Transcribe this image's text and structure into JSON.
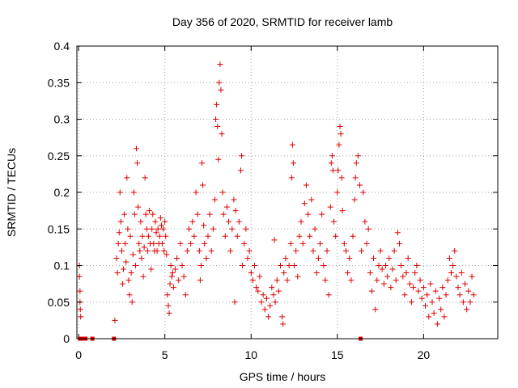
{
  "chart_data": {
    "type": "scatter",
    "title": "Day 356 of 2020, SRMTID for receiver lamb",
    "xlabel": "GPS time / hours",
    "ylabel": "SRMTID / TECUs",
    "xlim": [
      -0.1,
      24.3
    ],
    "ylim": [
      0,
      0.4
    ],
    "xticks": [
      0,
      5,
      10,
      15,
      20
    ],
    "xtick_labels": [
      "0",
      "5",
      "10",
      "15",
      "20"
    ],
    "yticks": [
      0,
      0.05,
      0.1,
      0.15,
      0.2,
      0.25,
      0.3,
      0.35,
      0.4
    ],
    "ytick_labels": [
      "0",
      "0.05",
      "0.1",
      "0.15",
      "0.2",
      "0.25",
      "0.3",
      "0.35",
      "0.4"
    ],
    "grid": true,
    "marker": "+",
    "color": "#e00000",
    "series": [
      {
        "name": "SRMTID",
        "points": [
          [
            0.05,
            0.1
          ],
          [
            0.05,
            0.085
          ],
          [
            0.08,
            0.065
          ],
          [
            0.08,
            0.05
          ],
          [
            0.1,
            0.04
          ],
          [
            0.12,
            0.03
          ],
          [
            2.1,
            0.025
          ],
          [
            2.2,
            0.11
          ],
          [
            2.25,
            0.09
          ],
          [
            2.3,
            0.13
          ],
          [
            2.35,
            0.145
          ],
          [
            2.4,
            0.2
          ],
          [
            2.45,
            0.16
          ],
          [
            2.5,
            0.12
          ],
          [
            2.55,
            0.075
          ],
          [
            2.6,
            0.095
          ],
          [
            2.65,
            0.17
          ],
          [
            2.7,
            0.13
          ],
          [
            2.75,
            0.105
          ],
          [
            2.8,
            0.22
          ],
          [
            2.85,
            0.15
          ],
          [
            2.9,
            0.08
          ],
          [
            2.95,
            0.06
          ],
          [
            3.0,
            0.14
          ],
          [
            3.05,
            0.09
          ],
          [
            3.1,
            0.05
          ],
          [
            3.15,
            0.115
          ],
          [
            3.2,
            0.2
          ],
          [
            3.25,
            0.17
          ],
          [
            3.3,
            0.1
          ],
          [
            3.35,
            0.26
          ],
          [
            3.4,
            0.24
          ],
          [
            3.45,
            0.18
          ],
          [
            3.5,
            0.13
          ],
          [
            3.55,
            0.12
          ],
          [
            3.6,
            0.16
          ],
          [
            3.65,
            0.11
          ],
          [
            3.7,
            0.14
          ],
          [
            3.75,
            0.085
          ],
          [
            3.8,
            0.125
          ],
          [
            3.85,
            0.22
          ],
          [
            3.9,
            0.17
          ],
          [
            3.95,
            0.15
          ],
          [
            4.0,
            0.12
          ],
          [
            4.05,
            0.14
          ],
          [
            4.1,
            0.175
          ],
          [
            4.15,
            0.13
          ],
          [
            4.2,
            0.095
          ],
          [
            4.25,
            0.15
          ],
          [
            4.3,
            0.17
          ],
          [
            4.35,
            0.13
          ],
          [
            4.4,
            0.12
          ],
          [
            4.45,
            0.16
          ],
          [
            4.5,
            0.145
          ],
          [
            4.55,
            0.12
          ],
          [
            4.6,
            0.15
          ],
          [
            4.65,
            0.13
          ],
          [
            4.7,
            0.14
          ],
          [
            4.75,
            0.165
          ],
          [
            4.8,
            0.155
          ],
          [
            4.85,
            0.13
          ],
          [
            4.9,
            0.15
          ],
          [
            4.95,
            0.12
          ],
          [
            5.0,
            0.16
          ],
          [
            5.05,
            0.14
          ],
          [
            5.1,
            0.115
          ],
          [
            5.15,
            0.06
          ],
          [
            5.2,
            0.045
          ],
          [
            5.25,
            0.035
          ],
          [
            5.3,
            0.075
          ],
          [
            5.35,
            0.1
          ],
          [
            5.4,
            0.085
          ],
          [
            5.45,
            0.09
          ],
          [
            5.5,
            0.07
          ],
          [
            5.6,
            0.095
          ],
          [
            5.7,
            0.11
          ],
          [
            5.8,
            0.08
          ],
          [
            5.9,
            0.13
          ],
          [
            6.0,
            0.1
          ],
          [
            6.1,
            0.085
          ],
          [
            6.2,
            0.06
          ],
          [
            6.3,
            0.12
          ],
          [
            6.4,
            0.15
          ],
          [
            6.5,
            0.13
          ],
          [
            6.6,
            0.16
          ],
          [
            6.7,
            0.14
          ],
          [
            6.8,
            0.2
          ],
          [
            6.9,
            0.17
          ],
          [
            7.0,
            0.12
          ],
          [
            7.05,
            0.08
          ],
          [
            7.1,
            0.1
          ],
          [
            7.15,
            0.24
          ],
          [
            7.2,
            0.21
          ],
          [
            7.25,
            0.155
          ],
          [
            7.3,
            0.13
          ],
          [
            7.4,
            0.11
          ],
          [
            7.5,
            0.14
          ],
          [
            7.6,
            0.17
          ],
          [
            7.7,
            0.12
          ],
          [
            7.8,
            0.15
          ],
          [
            7.9,
            0.19
          ],
          [
            7.95,
            0.3
          ],
          [
            8.0,
            0.32
          ],
          [
            8.05,
            0.29
          ],
          [
            8.1,
            0.245
          ],
          [
            8.15,
            0.35
          ],
          [
            8.2,
            0.375
          ],
          [
            8.25,
            0.34
          ],
          [
            8.3,
            0.28
          ],
          [
            8.35,
            0.2
          ],
          [
            8.4,
            0.17
          ],
          [
            8.5,
            0.14
          ],
          [
            8.6,
            0.18
          ],
          [
            8.7,
            0.16
          ],
          [
            8.8,
            0.12
          ],
          [
            8.9,
            0.15
          ],
          [
            9.0,
            0.19
          ],
          [
            9.05,
            0.05
          ],
          [
            9.1,
            0.175
          ],
          [
            9.2,
            0.14
          ],
          [
            9.3,
            0.16
          ],
          [
            9.4,
            0.23
          ],
          [
            9.45,
            0.25
          ],
          [
            9.5,
            0.1
          ],
          [
            9.6,
            0.13
          ],
          [
            9.7,
            0.15
          ],
          [
            9.8,
            0.11
          ],
          [
            9.9,
            0.12
          ],
          [
            10.0,
            0.09
          ],
          [
            10.1,
            0.08
          ],
          [
            10.2,
            0.1
          ],
          [
            10.3,
            0.07
          ],
          [
            10.4,
            0.065
          ],
          [
            10.5,
            0.085
          ],
          [
            10.6,
            0.05
          ],
          [
            10.7,
            0.06
          ],
          [
            10.8,
            0.04
          ],
          [
            10.9,
            0.055
          ],
          [
            11.0,
            0.03
          ],
          [
            11.1,
            0.045
          ],
          [
            11.2,
            0.07
          ],
          [
            11.3,
            0.06
          ],
          [
            11.35,
            0.135
          ],
          [
            11.4,
            0.05
          ],
          [
            11.5,
            0.08
          ],
          [
            11.6,
            0.065
          ],
          [
            11.7,
            0.1
          ],
          [
            11.8,
            0.03
          ],
          [
            11.85,
            0.02
          ],
          [
            11.9,
            0.09
          ],
          [
            12.0,
            0.11
          ],
          [
            12.1,
            0.08
          ],
          [
            12.2,
            0.1
          ],
          [
            12.3,
            0.13
          ],
          [
            12.35,
            0.22
          ],
          [
            12.4,
            0.265
          ],
          [
            12.45,
            0.24
          ],
          [
            12.5,
            0.1
          ],
          [
            12.6,
            0.12
          ],
          [
            12.7,
            0.085
          ],
          [
            12.8,
            0.14
          ],
          [
            12.9,
            0.16
          ],
          [
            13.0,
            0.13
          ],
          [
            13.1,
            0.185
          ],
          [
            13.2,
            0.21
          ],
          [
            13.3,
            0.17
          ],
          [
            13.4,
            0.14
          ],
          [
            13.5,
            0.19
          ],
          [
            13.6,
            0.12
          ],
          [
            13.7,
            0.15
          ],
          [
            13.8,
            0.09
          ],
          [
            13.9,
            0.11
          ],
          [
            14.0,
            0.13
          ],
          [
            14.1,
            0.17
          ],
          [
            14.2,
            0.1
          ],
          [
            14.3,
            0.08
          ],
          [
            14.4,
            0.12
          ],
          [
            14.5,
            0.06
          ],
          [
            14.6,
            0.18
          ],
          [
            14.65,
            0.24
          ],
          [
            14.7,
            0.25
          ],
          [
            14.75,
            0.23
          ],
          [
            14.8,
            0.16
          ],
          [
            14.9,
            0.14
          ],
          [
            15.0,
            0.2
          ],
          [
            15.05,
            0.23
          ],
          [
            15.1,
            0.265
          ],
          [
            15.15,
            0.29
          ],
          [
            15.2,
            0.28
          ],
          [
            15.25,
            0.22
          ],
          [
            15.3,
            0.175
          ],
          [
            15.4,
            0.13
          ],
          [
            15.5,
            0.12
          ],
          [
            15.6,
            0.09
          ],
          [
            15.7,
            0.11
          ],
          [
            15.8,
            0.08
          ],
          [
            15.9,
            0.14
          ],
          [
            16.0,
            0.19
          ],
          [
            16.05,
            0.22
          ],
          [
            16.1,
            0.24
          ],
          [
            16.2,
            0.25
          ],
          [
            16.3,
            0.21
          ],
          [
            16.4,
            0.12
          ],
          [
            16.5,
            0.2
          ],
          [
            16.6,
            0.16
          ],
          [
            16.7,
            0.13
          ],
          [
            16.8,
            0.15
          ],
          [
            16.9,
            0.09
          ],
          [
            17.0,
            0.065
          ],
          [
            17.1,
            0.11
          ],
          [
            17.2,
            0.04
          ],
          [
            17.3,
            0.08
          ],
          [
            17.4,
            0.1
          ],
          [
            17.5,
            0.12
          ],
          [
            17.6,
            0.095
          ],
          [
            17.7,
            0.075
          ],
          [
            17.8,
            0.1
          ],
          [
            17.9,
            0.085
          ],
          [
            18.0,
            0.11
          ],
          [
            18.1,
            0.07
          ],
          [
            18.2,
            0.095
          ],
          [
            18.3,
            0.12
          ],
          [
            18.4,
            0.08
          ],
          [
            18.5,
            0.145
          ],
          [
            18.6,
            0.13
          ],
          [
            18.7,
            0.1
          ],
          [
            18.8,
            0.085
          ],
          [
            18.9,
            0.06
          ],
          [
            19.0,
            0.09
          ],
          [
            19.1,
            0.11
          ],
          [
            19.2,
            0.075
          ],
          [
            19.3,
            0.05
          ],
          [
            19.4,
            0.07
          ],
          [
            19.5,
            0.09
          ],
          [
            19.6,
            0.1
          ],
          [
            19.7,
            0.065
          ],
          [
            19.8,
            0.08
          ],
          [
            19.9,
            0.055
          ],
          [
            20.0,
            0.07
          ],
          [
            20.1,
            0.045
          ],
          [
            20.2,
            0.06
          ],
          [
            20.3,
            0.03
          ],
          [
            20.4,
            0.075
          ],
          [
            20.5,
            0.05
          ],
          [
            20.6,
            0.035
          ],
          [
            20.7,
            0.065
          ],
          [
            20.8,
            0.02
          ],
          [
            20.9,
            0.055
          ],
          [
            21.0,
            0.04
          ],
          [
            21.1,
            0.07
          ],
          [
            21.2,
            0.03
          ],
          [
            21.3,
            0.06
          ],
          [
            21.4,
            0.08
          ],
          [
            21.5,
            0.11
          ],
          [
            21.6,
            0.09
          ],
          [
            21.7,
            0.1
          ],
          [
            21.8,
            0.12
          ],
          [
            21.9,
            0.085
          ],
          [
            22.0,
            0.07
          ],
          [
            22.1,
            0.06
          ],
          [
            22.2,
            0.09
          ],
          [
            22.3,
            0.05
          ],
          [
            22.4,
            0.075
          ],
          [
            22.5,
            0.04
          ],
          [
            22.6,
            0.065
          ],
          [
            22.7,
            0.05
          ],
          [
            22.8,
            0.085
          ],
          [
            22.9,
            0.06
          ]
        ]
      }
    ],
    "zero_markers_x": [
      0.08,
      0.2,
      0.3,
      0.4,
      0.8,
      2.05,
      16.35
    ]
  }
}
